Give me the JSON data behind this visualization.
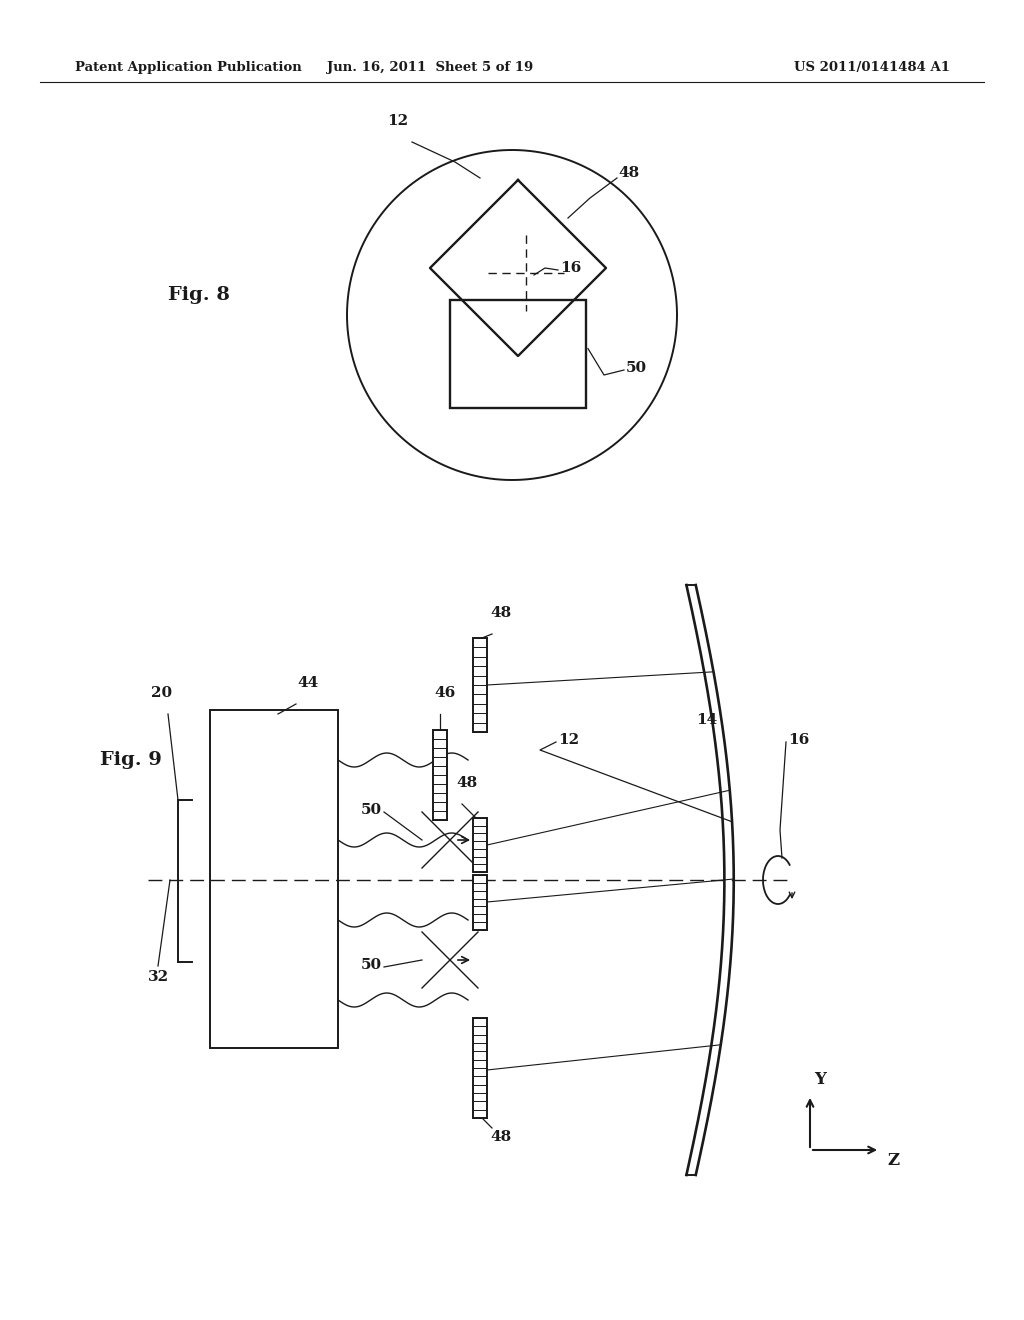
{
  "bg_color": "#ffffff",
  "header_left": "Patent Application Publication",
  "header_mid": "Jun. 16, 2011  Sheet 5 of 19",
  "header_right": "US 2011/0141484 A1",
  "lw": 1.4,
  "black": "#1a1a1a"
}
